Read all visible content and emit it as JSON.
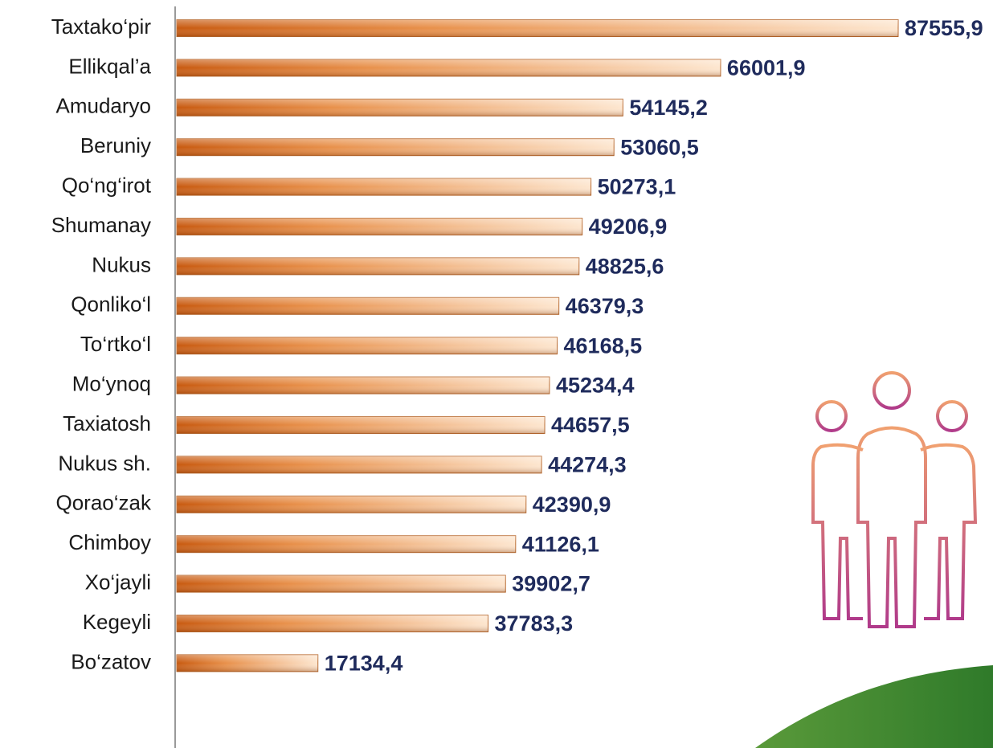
{
  "chart_data": {
    "type": "bar",
    "orientation": "horizontal",
    "categories": [
      "Taxtako‘pir",
      "Ellikqal’a",
      "Amudaryo",
      "Beruniy",
      "Qo‘ng‘irot",
      "Shumanay",
      "Nukus",
      "Qonliko‘l",
      "To‘rtko‘l",
      "Mo‘ynoq",
      "Taxiatosh",
      "Nukus sh.",
      "Qorao‘zak",
      "Chimboy",
      "Xo‘jayli",
      "Kegeyli",
      "Bo‘zatov"
    ],
    "values": [
      87555.9,
      66001.9,
      54145.2,
      53060.5,
      50273.1,
      49206.9,
      48825.6,
      46379.3,
      46168.5,
      45234.4,
      44657.5,
      44274.3,
      42390.9,
      41126.1,
      39902.7,
      37783.3,
      17134.4
    ],
    "value_labels": [
      "87555,9",
      "66001,9",
      "54145,2",
      "53060,5",
      "50273,1",
      "49206,9",
      "48825,6",
      "46379,3",
      "46168,5",
      "45234,4",
      "44657,5",
      "44274,3",
      "42390,9",
      "41126,1",
      "39902,7",
      "37783,3",
      "17134,4"
    ],
    "color": "#e07a2a"
  }
}
